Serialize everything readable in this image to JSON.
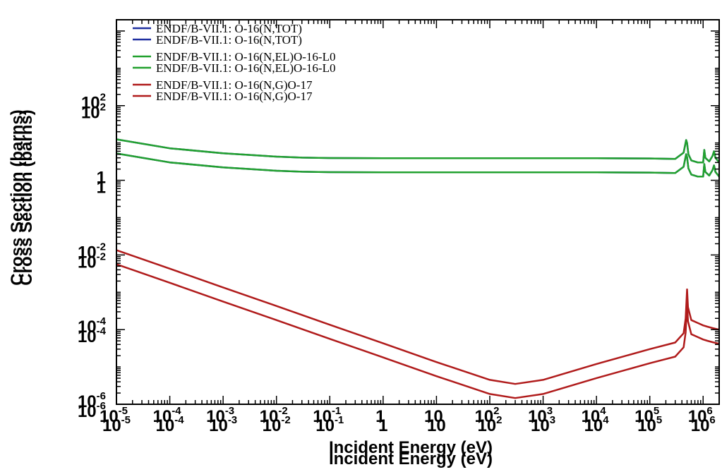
{
  "chart_data": {
    "type": "line",
    "title": "",
    "xlabel": "Incident Energy (eV)",
    "ylabel": "Cross Section (barns)",
    "xscale": "log",
    "yscale": "log",
    "xlim": [
      1e-05,
      2000000.0
    ],
    "ylim": [
      1e-06,
      20000.0
    ],
    "grid": false,
    "legend_position": "top-left",
    "x_ticks": [
      {
        "value": 1e-05,
        "base": "10",
        "exp": "-5"
      },
      {
        "value": 0.0001,
        "base": "10",
        "exp": "-4"
      },
      {
        "value": 0.001,
        "base": "10",
        "exp": "-3"
      },
      {
        "value": 0.01,
        "base": "10",
        "exp": "-2"
      },
      {
        "value": 0.1,
        "base": "10",
        "exp": "-1"
      },
      {
        "value": 1,
        "base": "1",
        "exp": ""
      },
      {
        "value": 10,
        "base": "10",
        "exp": ""
      },
      {
        "value": 100.0,
        "base": "10",
        "exp": "2"
      },
      {
        "value": 1000.0,
        "base": "10",
        "exp": "3"
      },
      {
        "value": 10000.0,
        "base": "10",
        "exp": "4"
      },
      {
        "value": 100000.0,
        "base": "10",
        "exp": "5"
      },
      {
        "value": 1000000.0,
        "base": "10",
        "exp": "6"
      }
    ],
    "y_ticks": [
      {
        "value": 1e-06,
        "base": "10",
        "exp": "-6"
      },
      {
        "value": 0.0001,
        "base": "10",
        "exp": "-4"
      },
      {
        "value": 0.01,
        "base": "10",
        "exp": "-2"
      },
      {
        "value": 1,
        "base": "1",
        "exp": ""
      },
      {
        "value": 100.0,
        "base": "10",
        "exp": "2"
      }
    ],
    "series": [
      {
        "name": "ENDF/B-VII.1: O-16(N,TOT)",
        "color": "#1f2fa0",
        "x": [
          1e-05,
          0.0001,
          0.001,
          0.01,
          0.03,
          0.1,
          1,
          10,
          100,
          1000.0,
          10000.0,
          100000.0,
          300000.0,
          430000.0,
          480000.0,
          500000.0,
          530000.0,
          600000.0,
          800000.0,
          1000000.0,
          1050000.0,
          1100000.0,
          1300000.0,
          1500000.0,
          1600000.0,
          1700000.0,
          2000000.0
        ],
        "y": [
          12.5,
          7.2,
          5.3,
          4.3,
          4.05,
          3.95,
          3.9,
          3.9,
          3.9,
          3.9,
          3.9,
          3.85,
          3.75,
          5.5,
          12,
          10,
          5,
          3.4,
          3,
          3,
          6.5,
          4,
          3.2,
          4.5,
          6,
          4,
          3
        ]
      },
      {
        "name": "ENDF/B-VII.1: O-16(N,EL)O-16-L0",
        "color": "#22a12f",
        "x": [
          1e-05,
          0.0001,
          0.001,
          0.01,
          0.03,
          0.1,
          1,
          10,
          100,
          1000.0,
          10000.0,
          100000.0,
          300000.0,
          430000.0,
          480000.0,
          500000.0,
          530000.0,
          600000.0,
          800000.0,
          1000000.0,
          1050000.0,
          1100000.0,
          1300000.0,
          1500000.0,
          1600000.0,
          1700000.0,
          2000000.0
        ],
        "y": [
          12.5,
          7.2,
          5.3,
          4.3,
          4.05,
          3.95,
          3.9,
          3.9,
          3.9,
          3.9,
          3.9,
          3.85,
          3.75,
          5.5,
          12,
          10,
          5,
          3.4,
          3,
          3,
          6.5,
          4,
          3.2,
          4.5,
          6,
          4,
          3
        ]
      },
      {
        "name": "ENDF/B-VII.1: O-16(N,G)O-17",
        "color": "#b01b1b",
        "x": [
          1e-05,
          0.0001,
          0.001,
          0.01,
          0.1,
          1,
          10,
          100,
          300,
          1000.0,
          10000.0,
          100000.0,
          300000.0,
          430000.0,
          470000.0,
          500000.0,
          520000.0,
          600000.0,
          800000.0,
          1000000.0,
          1200000.0,
          1500000.0,
          2000000.0
        ],
        "y": [
          0.0135,
          0.0043,
          0.00135,
          0.00043,
          0.000135,
          4.3e-05,
          1.35e-05,
          4.5e-06,
          3.5e-06,
          4.5e-06,
          1.2e-05,
          3e-05,
          4.5e-05,
          8e-05,
          0.0002,
          0.0012,
          0.0004,
          0.00018,
          0.00015,
          0.00013,
          0.00012,
          0.00011,
          0.0001
        ]
      }
    ]
  }
}
